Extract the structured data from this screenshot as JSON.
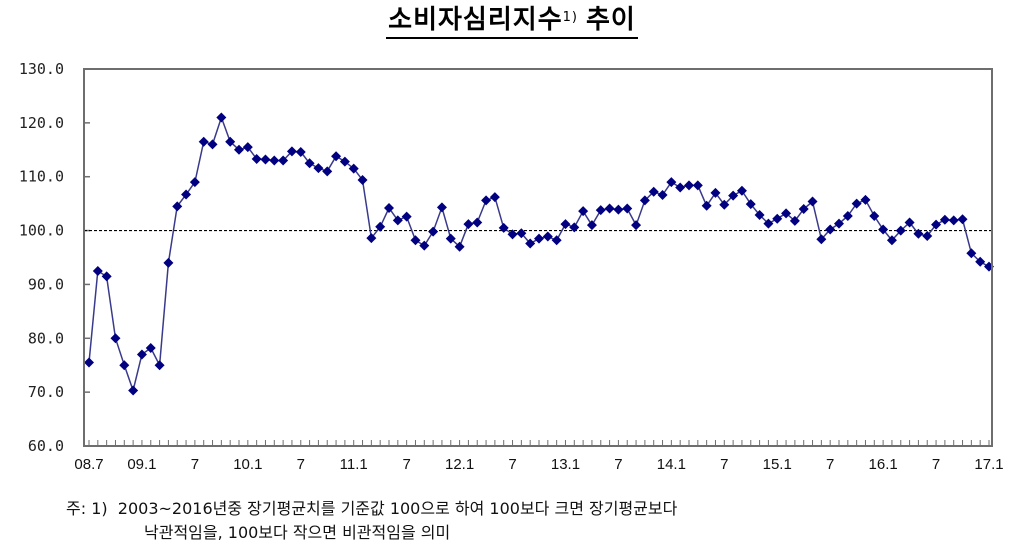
{
  "title": {
    "main": "소비자심리지수",
    "superscript": "1)",
    "suffix": "추이"
  },
  "note": {
    "prefix": "주:  1)",
    "line1": "2003~2016년중 장기평균치를 기준값 100으로 하여 100보다 크면 장기평균보다",
    "line2": "낙관적임을, 100보다 작으면 비관적임을 의미"
  },
  "colors": {
    "series": "#000080",
    "line": "#3a3a8c",
    "axis": "#6e6e6e",
    "reference": "#000000"
  },
  "chart_data": {
    "type": "line",
    "title": "소비자심리지수 1) 추이",
    "xlabel": "",
    "ylabel": "",
    "ylim": [
      60,
      130
    ],
    "yticks": [
      "130.0",
      "120.0",
      "110.0",
      "100.0",
      "90.0",
      "80.0",
      "70.0",
      "60.0"
    ],
    "xtick_labels": [
      "08.7",
      "09.1",
      "7",
      "10.1",
      "7",
      "11.1",
      "7",
      "12.1",
      "7",
      "13.1",
      "7",
      "14.1",
      "7",
      "15.1",
      "7",
      "16.1",
      "7",
      "17.1"
    ],
    "reference_line": {
      "value": 100,
      "style": "dotted"
    },
    "grid": false,
    "legend": null,
    "x_start": "2008.07",
    "x_end": "2017.01",
    "frequency": "monthly",
    "series": [
      {
        "name": "소비자심리지수",
        "marker": "diamond",
        "values": [
          75.5,
          92.5,
          91.5,
          80.0,
          75.0,
          70.3,
          77.0,
          78.2,
          75.0,
          94.0,
          104.5,
          106.7,
          109.0,
          116.5,
          116.0,
          121.0,
          116.5,
          115.0,
          115.5,
          113.3,
          113.2,
          113.0,
          113.0,
          114.7,
          114.6,
          112.5,
          111.6,
          111.0,
          113.8,
          112.8,
          111.5,
          109.4,
          98.6,
          100.7,
          104.2,
          101.9,
          102.6,
          98.2,
          97.2,
          99.8,
          104.3,
          98.5,
          97.0,
          101.2,
          101.5,
          105.6,
          106.2,
          100.5,
          99.3,
          99.5,
          97.6,
          98.5,
          98.9,
          98.2,
          101.2,
          100.6,
          103.6,
          101.0,
          103.8,
          104.1,
          103.9,
          104.1,
          101.0,
          105.6,
          107.2,
          106.6,
          109.0,
          108.0,
          108.4,
          108.4,
          104.6,
          107.0,
          104.8,
          106.5,
          107.4,
          104.9,
          102.9,
          101.3,
          102.2,
          103.2,
          101.8,
          104.0,
          105.4,
          98.4,
          100.2,
          101.3,
          102.7,
          105.0,
          105.7,
          102.7,
          100.2,
          98.2,
          100.0,
          101.5,
          99.4,
          99.0,
          101.1,
          102.0,
          101.9,
          102.1,
          95.8,
          94.2,
          93.3
        ]
      }
    ]
  }
}
